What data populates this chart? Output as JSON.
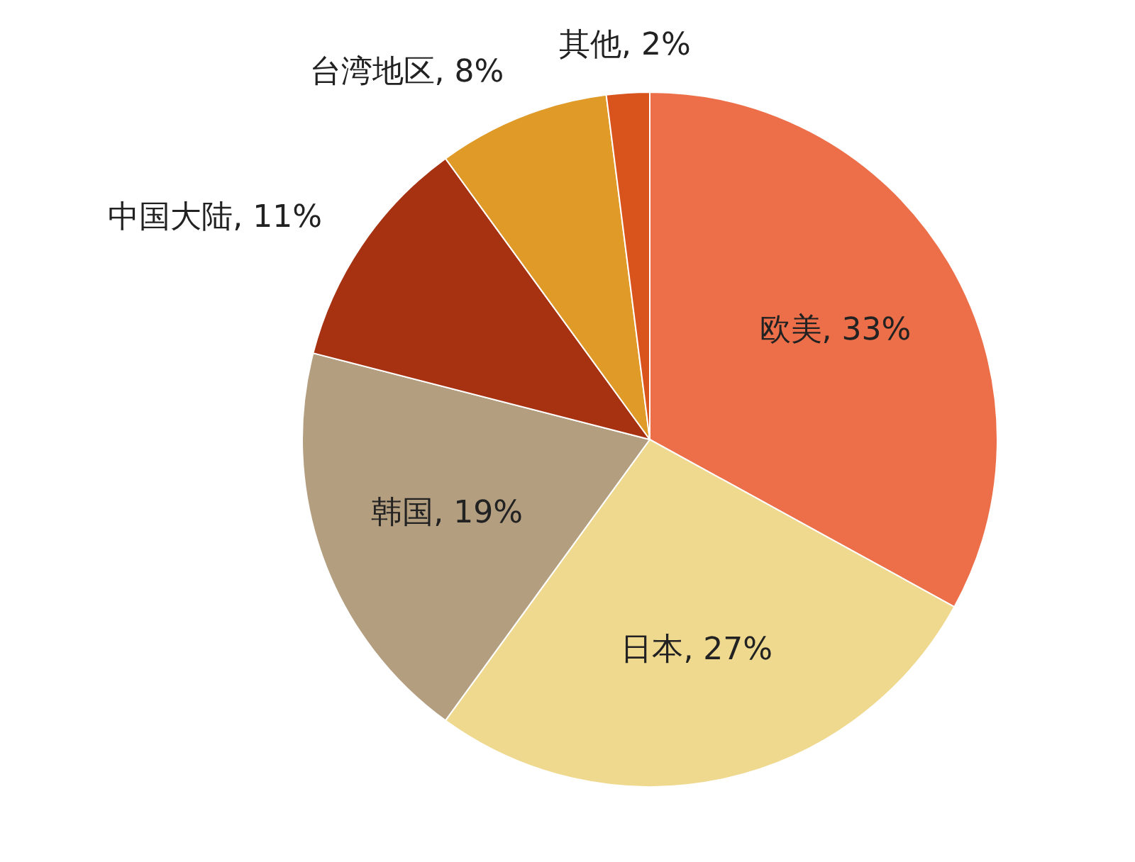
{
  "chart_data": {
    "type": "pie",
    "categories": [
      "欧美",
      "日本",
      "韩国",
      "中国大陆",
      "台湾地区",
      "其他"
    ],
    "values": [
      33,
      27,
      19,
      11,
      8,
      2
    ],
    "colors": [
      "#ec6f4a",
      "#efd98f",
      "#b39e80",
      "#a63212",
      "#e09a28",
      "#d9531c"
    ],
    "value_labels": [
      "33%",
      "27%",
      "19%",
      "11%",
      "8%",
      "2%"
    ],
    "legend": false
  }
}
